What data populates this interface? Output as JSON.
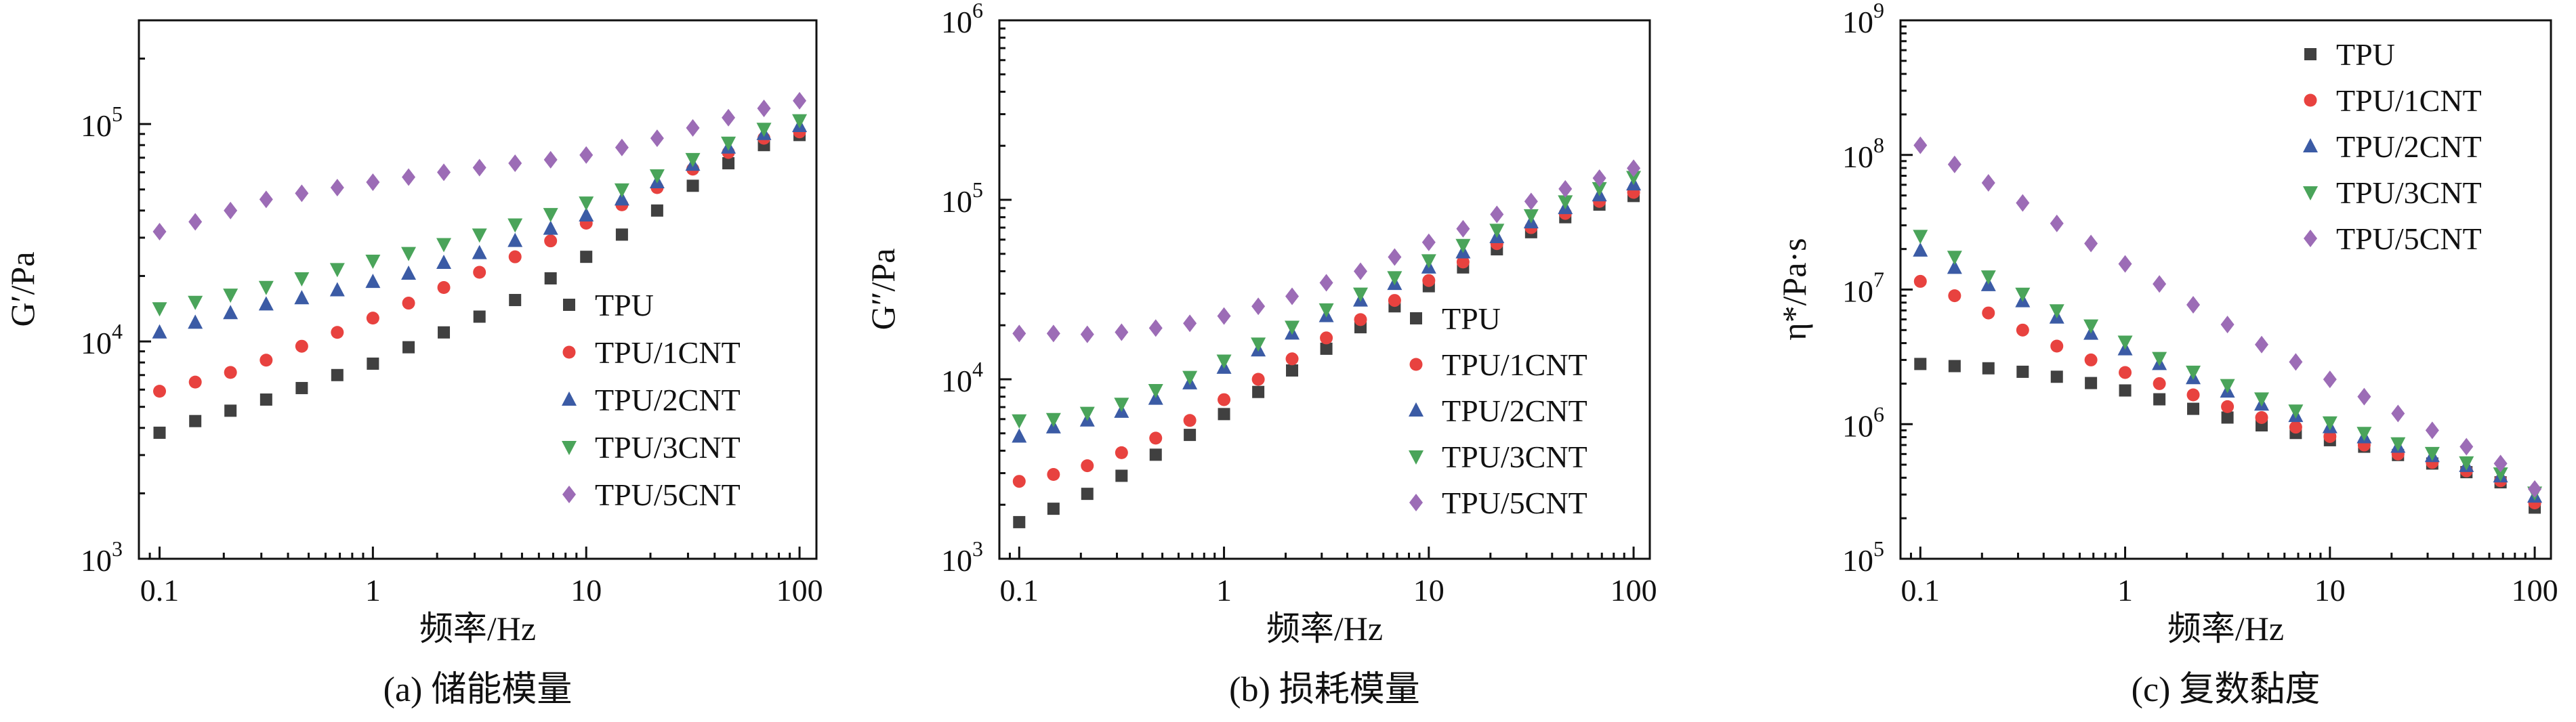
{
  "chart_data": [
    {
      "type": "scatter",
      "caption": "(a) 储能模量",
      "xlabel": "频率/Hz",
      "ylabel": "G′/Pa",
      "x_scale": "log",
      "y_scale": "log",
      "xlim": [
        0.08,
        120
      ],
      "ylim": [
        1000,
        300000
      ],
      "x_ticks": [
        0.1,
        1,
        10,
        100
      ],
      "x_tick_labels": [
        "0.1",
        "1",
        "10",
        "100"
      ],
      "y_ticks": [
        1000,
        10000,
        100000
      ],
      "y_tick_labels": [
        {
          "base": "10",
          "exp": "3"
        },
        {
          "base": "10",
          "exp": "4"
        },
        {
          "base": "10",
          "exp": "5"
        }
      ],
      "legend_position": "bottom-right",
      "x": [
        0.1,
        0.147,
        0.215,
        0.316,
        0.464,
        0.681,
        1,
        1.47,
        2.15,
        3.16,
        4.64,
        6.81,
        10,
        14.7,
        21.5,
        31.6,
        46.4,
        68.1,
        100
      ],
      "series": [
        {
          "name": "TPU",
          "marker": "square",
          "color": "#404040",
          "values": [
            3800,
            4300,
            4800,
            5400,
            6100,
            7000,
            7900,
            9400,
            11000,
            13000,
            15500,
            19500,
            24500,
            31000,
            40000,
            52000,
            66000,
            80000,
            89000
          ]
        },
        {
          "name": "TPU/1CNT",
          "marker": "circle",
          "color": "#e8423f",
          "values": [
            5900,
            6500,
            7200,
            8200,
            9500,
            11000,
            12800,
            15000,
            17700,
            20800,
            24500,
            29000,
            35000,
            42500,
            51000,
            62000,
            74000,
            86000,
            92000
          ]
        },
        {
          "name": "TPU/2CNT",
          "marker": "triangle-up",
          "color": "#3b5ba5",
          "values": [
            11000,
            12200,
            13500,
            14800,
            15800,
            17200,
            18800,
            20500,
            23000,
            25500,
            29000,
            33000,
            38000,
            45000,
            54000,
            65000,
            78000,
            90000,
            98000
          ]
        },
        {
          "name": "TPU/3CNT",
          "marker": "triangle-down",
          "color": "#4aa45a",
          "values": [
            14200,
            15200,
            16400,
            17800,
            19500,
            21500,
            23500,
            25500,
            28000,
            31000,
            34500,
            38500,
            43500,
            50000,
            58000,
            69000,
            82000,
            95000,
            104000
          ]
        },
        {
          "name": "TPU/5CNT",
          "marker": "diamond",
          "color": "#9c6cb6",
          "values": [
            32000,
            35500,
            40000,
            45000,
            48000,
            51000,
            54000,
            57000,
            60000,
            63000,
            66000,
            68500,
            72000,
            78000,
            86000,
            96000,
            107000,
            118000,
            128000
          ]
        }
      ]
    },
    {
      "type": "scatter",
      "caption": "(b) 损耗模量",
      "xlabel": "频率/Hz",
      "ylabel": "G″/Pa",
      "x_scale": "log",
      "y_scale": "log",
      "xlim": [
        0.08,
        120
      ],
      "ylim": [
        1000,
        1000000
      ],
      "x_ticks": [
        0.1,
        1,
        10,
        100
      ],
      "x_tick_labels": [
        "0.1",
        "1",
        "10",
        "100"
      ],
      "y_ticks": [
        1000,
        10000,
        100000,
        1000000
      ],
      "y_tick_labels": [
        {
          "base": "10",
          "exp": "3"
        },
        {
          "base": "10",
          "exp": "4"
        },
        {
          "base": "10",
          "exp": "5"
        },
        {
          "base": "10",
          "exp": "6"
        }
      ],
      "legend_position": "bottom-right",
      "x": [
        0.1,
        0.147,
        0.215,
        0.316,
        0.464,
        0.681,
        1,
        1.47,
        2.15,
        3.16,
        4.64,
        6.81,
        10,
        14.7,
        21.5,
        31.6,
        46.4,
        68.1,
        100
      ],
      "series": [
        {
          "name": "TPU",
          "marker": "square",
          "color": "#404040",
          "values": [
            1600,
            1900,
            2300,
            2900,
            3800,
            4900,
            6400,
            8500,
            11200,
            14800,
            19500,
            25500,
            33000,
            42000,
            53000,
            66000,
            80000,
            94000,
            105000
          ]
        },
        {
          "name": "TPU/1CNT",
          "marker": "circle",
          "color": "#e8423f",
          "values": [
            2700,
            2950,
            3300,
            3900,
            4700,
            5900,
            7700,
            10000,
            13000,
            17000,
            21500,
            27500,
            35500,
            45000,
            57000,
            70000,
            84000,
            98000,
            110000
          ]
        },
        {
          "name": "TPU/2CNT",
          "marker": "triangle-up",
          "color": "#3b5ba5",
          "values": [
            4800,
            5400,
            5900,
            6600,
            7800,
            9500,
            11600,
            14500,
            18000,
            22500,
            27500,
            34000,
            42000,
            51000,
            62000,
            75000,
            90000,
            106000,
            122000
          ]
        },
        {
          "name": "TPU/3CNT",
          "marker": "triangle-down",
          "color": "#4aa45a",
          "values": [
            5900,
            6000,
            6500,
            7300,
            8700,
            10300,
            12700,
            15800,
            19600,
            24500,
            30000,
            37000,
            46000,
            56000,
            68000,
            82000,
            98000,
            116000,
            134000
          ]
        },
        {
          "name": "TPU/5CNT",
          "marker": "diamond",
          "color": "#9c6cb6",
          "values": [
            18000,
            18000,
            17800,
            18300,
            19300,
            20500,
            22500,
            25500,
            29000,
            34500,
            40000,
            48000,
            58000,
            69000,
            83000,
            98000,
            115000,
            132000,
            150000
          ]
        }
      ]
    },
    {
      "type": "scatter",
      "caption": "(c) 复数黏度",
      "xlabel": "频率/Hz",
      "ylabel": "η*/Pa·s",
      "x_scale": "log",
      "y_scale": "log",
      "xlim": [
        0.08,
        120
      ],
      "ylim": [
        100000,
        1000000000
      ],
      "x_ticks": [
        0.1,
        1,
        10,
        100
      ],
      "x_tick_labels": [
        "0.1",
        "1",
        "10",
        "100"
      ],
      "y_ticks": [
        100000,
        1000000,
        10000000,
        100000000,
        1000000000
      ],
      "y_tick_labels": [
        {
          "base": "10",
          "exp": "5"
        },
        {
          "base": "10",
          "exp": "6"
        },
        {
          "base": "10",
          "exp": "7"
        },
        {
          "base": "10",
          "exp": "8"
        },
        {
          "base": "10",
          "exp": "9"
        }
      ],
      "legend_position": "top-right",
      "x": [
        0.1,
        0.147,
        0.215,
        0.316,
        0.464,
        0.681,
        1,
        1.47,
        2.15,
        3.16,
        4.64,
        6.81,
        10,
        14.7,
        21.5,
        31.6,
        46.4,
        68.1,
        100
      ],
      "series": [
        {
          "name": "TPU",
          "marker": "square",
          "color": "#404040",
          "values": [
            2800000,
            2700000,
            2600000,
            2450000,
            2250000,
            2020000,
            1780000,
            1530000,
            1300000,
            1120000,
            980000,
            860000,
            760000,
            680000,
            590000,
            510000,
            440000,
            370000,
            240000
          ]
        },
        {
          "name": "TPU/1CNT",
          "marker": "circle",
          "color": "#e8423f",
          "values": [
            11500000,
            9000000,
            6700000,
            5000000,
            3800000,
            3000000,
            2420000,
            2000000,
            1650000,
            1350000,
            1120000,
            950000,
            810000,
            700000,
            600000,
            520000,
            450000,
            380000,
            260000
          ]
        },
        {
          "name": "TPU/2CNT",
          "marker": "triangle-up",
          "color": "#3b5ba5",
          "values": [
            19500000,
            14500000,
            10800000,
            8200000,
            6200000,
            4700000,
            3600000,
            2800000,
            2200000,
            1750000,
            1400000,
            1150000,
            950000,
            800000,
            680000,
            580000,
            490000,
            410000,
            290000
          ]
        },
        {
          "name": "TPU/3CNT",
          "marker": "triangle-down",
          "color": "#4aa45a",
          "values": [
            25000000,
            17500000,
            12500000,
            9300000,
            7000000,
            5400000,
            4100000,
            3100000,
            2450000,
            1950000,
            1550000,
            1260000,
            1030000,
            860000,
            720000,
            610000,
            520000,
            430000,
            310000
          ]
        },
        {
          "name": "TPU/5CNT",
          "marker": "diamond",
          "color": "#9c6cb6",
          "values": [
            118000000,
            85000000,
            62000000,
            44000000,
            31000000,
            22000000,
            15500000,
            11000000,
            7700000,
            5500000,
            3900000,
            2900000,
            2150000,
            1600000,
            1200000,
            900000,
            680000,
            510000,
            330000
          ]
        }
      ]
    }
  ]
}
